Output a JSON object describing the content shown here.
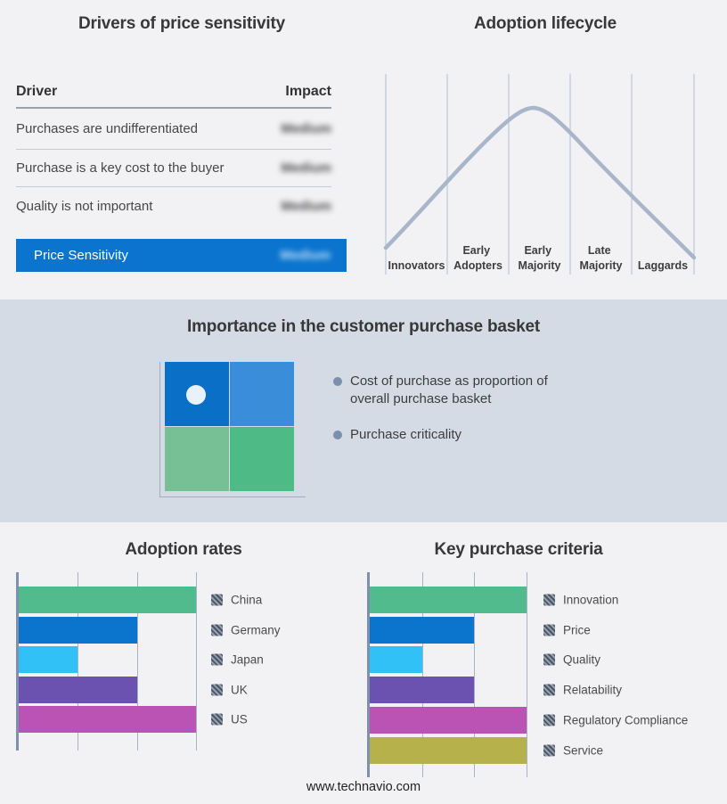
{
  "footer": {
    "text": "www.technavio.com"
  },
  "colors": {
    "background": "#f2f2f4",
    "band_background": "#d4dbe5",
    "highlight_blue": "#0a74cf",
    "curve": "#a9b6ca",
    "axis": "#7e90aa",
    "gridline": "#a6b3c6",
    "bullet_dot": "#7b90ac"
  },
  "sections": {
    "drivers": {
      "title": "Drivers of price sensitivity",
      "col_driver": "Driver",
      "col_impact": "Impact",
      "impact_note": "impact values appear blurred in source image",
      "rows": [
        {
          "driver": "Purchases are undifferentiated",
          "impact": "Medium"
        },
        {
          "driver": "Purchase is a key cost to the buyer",
          "impact": "Medium"
        },
        {
          "driver": "Quality is not important",
          "impact": "Medium"
        }
      ],
      "highlight": {
        "driver": "Price Sensitivity",
        "impact": "Medium",
        "bg": "#0a74cf"
      }
    },
    "lifecycle": {
      "title": "Adoption lifecycle",
      "stage_lines": [
        [
          "Innovators"
        ],
        [
          "Early",
          "Adopters"
        ],
        [
          "Early",
          "Majority"
        ],
        [
          "Late",
          "Majority"
        ],
        [
          "Laggards"
        ]
      ]
    },
    "basket": {
      "title": "Importance in the customer purchase basket",
      "bullets": [
        "Cost of purchase as proportion of overall purchase basket",
        "Purchase criticality"
      ],
      "quadrant_colors": {
        "top_left": "#0a70c7",
        "top_right": "#3a8dd9",
        "bottom_left": "#77c096",
        "bottom_right": "#4eba85"
      },
      "marker": {
        "position": "top-left quadrant",
        "color": "#e9f2fa"
      }
    },
    "adoption_rates": {
      "title": "Adoption rates"
    },
    "key_purchase_criteria": {
      "title": "Key purchase criteria"
    }
  },
  "chart_data": [
    {
      "type": "table",
      "title": "Drivers of price sensitivity",
      "columns": [
        "Driver",
        "Impact"
      ],
      "rows": [
        [
          "Purchases are undifferentiated",
          "Medium"
        ],
        [
          "Purchase is a key cost to the buyer",
          "Medium"
        ],
        [
          "Quality is not important",
          "Medium"
        ],
        [
          "Price Sensitivity",
          "Medium"
        ]
      ],
      "note": "Impact column values are blurred; last row highlighted on blue"
    },
    {
      "type": "line",
      "title": "Adoption lifecycle",
      "shape": "bell-curve",
      "categories": [
        "Innovators",
        "Early Adopters",
        "Early Majority",
        "Late Majority",
        "Laggards"
      ],
      "peak_at": "Early Majority",
      "line_color": "#a9b6ca",
      "grid": true
    },
    {
      "type": "bar",
      "title": "Adoption rates",
      "orientation": "horizontal",
      "categories": [
        "China",
        "Germany",
        "Japan",
        "UK",
        "US"
      ],
      "values": [
        3,
        2,
        1,
        2,
        3
      ],
      "xlim": [
        0,
        3
      ],
      "value_note": "relative units read from unlabeled gridlines",
      "bar_colors": [
        "#52bb8d",
        "#0b75cd",
        "#32c1f6",
        "#6b52b0",
        "#ba53b4"
      ],
      "grid": true,
      "legend_position": "right"
    },
    {
      "type": "bar",
      "title": "Key purchase criteria",
      "orientation": "horizontal",
      "categories": [
        "Innovation",
        "Price",
        "Quality",
        "Relatability",
        "Regulatory Compliance",
        "Service"
      ],
      "values": [
        3,
        2,
        1,
        2,
        3,
        3
      ],
      "xlim": [
        0,
        3
      ],
      "value_note": "relative units read from unlabeled gridlines",
      "bar_colors": [
        "#52bb8d",
        "#0b75cd",
        "#32c1f6",
        "#6b52b0",
        "#ba53b4",
        "#b6b14b"
      ],
      "grid": true,
      "legend_position": "right"
    }
  ]
}
